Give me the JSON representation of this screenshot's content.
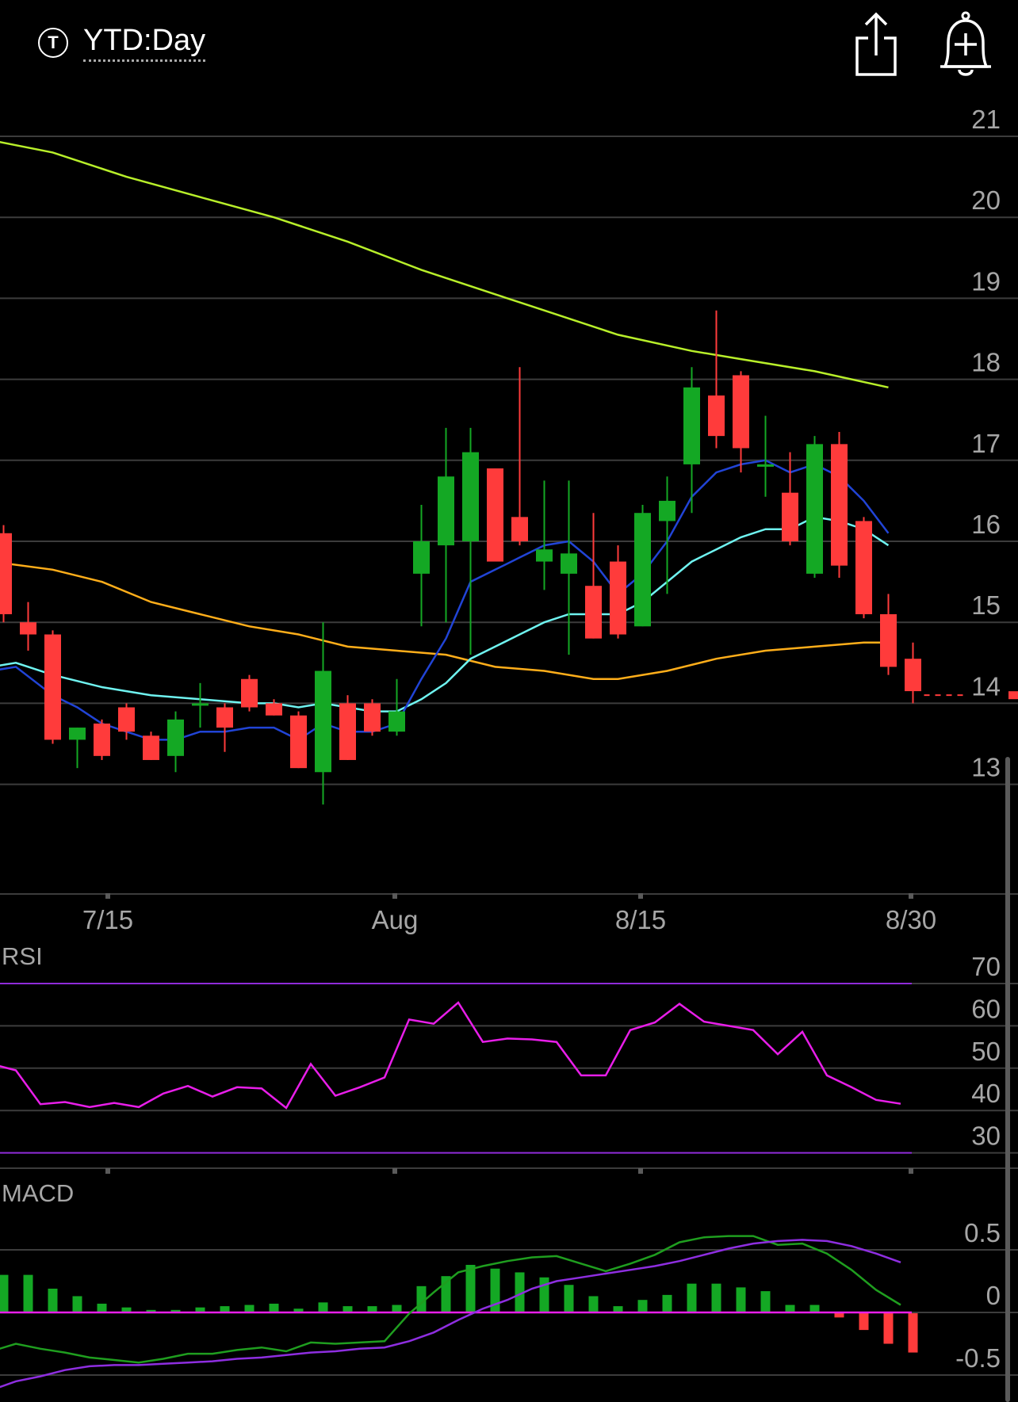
{
  "header": {
    "ticker_icon_letter": "T",
    "range_label": "YTD:Day",
    "share_icon": "share-icon",
    "alert_icon": "bell-plus-icon"
  },
  "chart_data": [
    {
      "type": "candlestick",
      "panel": "price",
      "ylim": [
        12,
        21.2
      ],
      "y_ticks": [
        21,
        20,
        19,
        18,
        17,
        16,
        15,
        14,
        13
      ],
      "x_ticks": [
        "7/15",
        "Aug",
        "8/15",
        "8/30"
      ],
      "colors": {
        "up": "#14a824",
        "down": "#ff3b3b",
        "ma_lime": "#b8ef2a",
        "ma_orange": "#ffae1a",
        "ma_cyan": "#6ff3f0",
        "ma_blue": "#2144d6"
      },
      "candles": [
        {
          "o": 16.1,
          "h": 16.2,
          "l": 15.0,
          "c": 15.1
        },
        {
          "o": 15.0,
          "h": 15.25,
          "l": 14.65,
          "c": 14.85
        },
        {
          "o": 14.85,
          "h": 14.9,
          "l": 13.5,
          "c": 13.55
        },
        {
          "o": 13.55,
          "h": 13.7,
          "l": 13.2,
          "c": 13.7
        },
        {
          "o": 13.75,
          "h": 13.8,
          "l": 13.3,
          "c": 13.35
        },
        {
          "o": 13.95,
          "h": 14.0,
          "l": 13.55,
          "c": 13.65
        },
        {
          "o": 13.6,
          "h": 13.65,
          "l": 13.3,
          "c": 13.3
        },
        {
          "o": 13.35,
          "h": 13.9,
          "l": 13.15,
          "c": 13.8
        },
        {
          "o": 14.0,
          "h": 14.25,
          "l": 13.7,
          "c": 14.0
        },
        {
          "o": 13.95,
          "h": 14.0,
          "l": 13.4,
          "c": 13.7
        },
        {
          "o": 14.3,
          "h": 14.35,
          "l": 13.9,
          "c": 13.95
        },
        {
          "o": 14.0,
          "h": 14.05,
          "l": 13.85,
          "c": 13.85
        },
        {
          "o": 13.85,
          "h": 13.9,
          "l": 13.2,
          "c": 13.2
        },
        {
          "o": 13.15,
          "h": 15.0,
          "l": 12.75,
          "c": 14.4
        },
        {
          "o": 14.0,
          "h": 14.1,
          "l": 13.3,
          "c": 13.3
        },
        {
          "o": 14.0,
          "h": 14.05,
          "l": 13.6,
          "c": 13.65
        },
        {
          "o": 13.65,
          "h": 14.3,
          "l": 13.6,
          "c": 13.9
        },
        {
          "o": 15.6,
          "h": 16.45,
          "l": 14.95,
          "c": 16.0
        },
        {
          "o": 15.95,
          "h": 17.4,
          "l": 15.0,
          "c": 16.8
        },
        {
          "o": 16.0,
          "h": 17.4,
          "l": 14.6,
          "c": 17.1
        },
        {
          "o": 16.9,
          "h": 16.9,
          "l": 15.8,
          "c": 15.75
        },
        {
          "o": 16.3,
          "h": 18.15,
          "l": 15.95,
          "c": 16.0
        },
        {
          "o": 15.75,
          "h": 16.75,
          "l": 15.4,
          "c": 15.9
        },
        {
          "o": 15.6,
          "h": 16.75,
          "l": 14.6,
          "c": 15.85
        },
        {
          "o": 15.45,
          "h": 16.35,
          "l": 14.8,
          "c": 14.8
        },
        {
          "o": 15.75,
          "h": 15.95,
          "l": 14.8,
          "c": 14.85
        },
        {
          "o": 14.95,
          "h": 16.45,
          "l": 14.95,
          "c": 16.35
        },
        {
          "o": 16.25,
          "h": 16.8,
          "l": 15.35,
          "c": 16.5
        },
        {
          "o": 16.95,
          "h": 18.15,
          "l": 16.35,
          "c": 17.9
        },
        {
          "o": 17.8,
          "h": 18.85,
          "l": 17.15,
          "c": 17.3
        },
        {
          "o": 18.05,
          "h": 18.1,
          "l": 16.85,
          "c": 17.15
        },
        {
          "o": 16.95,
          "h": 17.55,
          "l": 16.55,
          "c": 16.95
        },
        {
          "o": 16.6,
          "h": 17.1,
          "l": 15.95,
          "c": 16.0
        },
        {
          "o": 15.6,
          "h": 17.3,
          "l": 15.55,
          "c": 17.2
        },
        {
          "o": 17.2,
          "h": 17.35,
          "l": 15.55,
          "c": 15.7
        },
        {
          "o": 16.25,
          "h": 16.3,
          "l": 15.05,
          "c": 15.1
        },
        {
          "o": 15.1,
          "h": 15.35,
          "l": 14.35,
          "c": 14.45
        },
        {
          "o": 14.55,
          "h": 14.75,
          "l": 14.0,
          "c": 14.15
        }
      ],
      "last_price_line": 14.1,
      "moving_averages": [
        {
          "color": "lime",
          "points": [
            [
              -0.5,
              20.95
            ],
            [
              2,
              20.8
            ],
            [
              5,
              20.5
            ],
            [
              8,
              20.25
            ],
            [
              11,
              20.0
            ],
            [
              14,
              19.7
            ],
            [
              17,
              19.35
            ],
            [
              20,
              19.05
            ],
            [
              22,
              18.85
            ],
            [
              25,
              18.55
            ],
            [
              28,
              18.35
            ],
            [
              30,
              18.25
            ],
            [
              33,
              18.1
            ],
            [
              36,
              17.9
            ]
          ]
        },
        {
          "color": "orange",
          "points": [
            [
              -0.5,
              15.75
            ],
            [
              2,
              15.65
            ],
            [
              4,
              15.5
            ],
            [
              6,
              15.25
            ],
            [
              8,
              15.1
            ],
            [
              10,
              14.95
            ],
            [
              12,
              14.85
            ],
            [
              14,
              14.7
            ],
            [
              16,
              14.65
            ],
            [
              18,
              14.6
            ],
            [
              20,
              14.45
            ],
            [
              22,
              14.4
            ],
            [
              24,
              14.3
            ],
            [
              25,
              14.3
            ],
            [
              27,
              14.4
            ],
            [
              29,
              14.55
            ],
            [
              31,
              14.65
            ],
            [
              33,
              14.7
            ],
            [
              35,
              14.75
            ],
            [
              36,
              14.75
            ]
          ]
        },
        {
          "color": "cyan",
          "points": [
            [
              -0.5,
              14.45
            ],
            [
              0.5,
              14.5
            ],
            [
              2,
              14.35
            ],
            [
              4,
              14.2
            ],
            [
              6,
              14.1
            ],
            [
              8,
              14.05
            ],
            [
              10,
              14.0
            ],
            [
              11,
              14.0
            ],
            [
              12,
              13.95
            ],
            [
              13,
              14.0
            ],
            [
              14,
              13.95
            ],
            [
              15,
              13.9
            ],
            [
              16,
              13.9
            ],
            [
              17,
              14.05
            ],
            [
              18,
              14.25
            ],
            [
              19,
              14.55
            ],
            [
              20,
              14.7
            ],
            [
              21,
              14.85
            ],
            [
              22,
              15.0
            ],
            [
              23,
              15.1
            ],
            [
              24,
              15.1
            ],
            [
              25,
              15.1
            ],
            [
              26,
              15.25
            ],
            [
              27,
              15.5
            ],
            [
              28,
              15.75
            ],
            [
              29,
              15.9
            ],
            [
              30,
              16.05
            ],
            [
              31,
              16.15
            ],
            [
              32,
              16.15
            ],
            [
              33,
              16.3
            ],
            [
              34,
              16.25
            ],
            [
              35,
              16.15
            ],
            [
              36,
              15.95
            ]
          ]
        },
        {
          "color": "blue",
          "points": [
            [
              -0.5,
              14.4
            ],
            [
              0.5,
              14.45
            ],
            [
              2,
              14.1
            ],
            [
              3,
              13.95
            ],
            [
              4,
              13.75
            ],
            [
              5,
              13.65
            ],
            [
              6,
              13.55
            ],
            [
              7,
              13.55
            ],
            [
              8,
              13.65
            ],
            [
              9,
              13.65
            ],
            [
              10,
              13.7
            ],
            [
              11,
              13.7
            ],
            [
              12,
              13.55
            ],
            [
              13,
              13.75
            ],
            [
              14,
              13.65
            ],
            [
              15,
              13.65
            ],
            [
              16,
              13.75
            ],
            [
              17,
              14.3
            ],
            [
              18,
              14.8
            ],
            [
              19,
              15.5
            ],
            [
              20,
              15.65
            ],
            [
              21,
              15.8
            ],
            [
              22,
              15.95
            ],
            [
              23,
              16.0
            ],
            [
              24,
              15.75
            ],
            [
              25,
              15.35
            ],
            [
              26,
              15.6
            ],
            [
              27,
              16.0
            ],
            [
              28,
              16.55
            ],
            [
              29,
              16.85
            ],
            [
              30,
              16.95
            ],
            [
              31,
              17.0
            ],
            [
              32,
              16.85
            ],
            [
              33,
              16.95
            ],
            [
              34,
              16.8
            ],
            [
              35,
              16.5
            ],
            [
              36,
              16.1
            ]
          ]
        }
      ]
    },
    {
      "type": "line",
      "panel": "rsi",
      "title": "RSI",
      "ylim": [
        27,
        73
      ],
      "y_ticks": [
        70,
        60,
        50,
        40,
        30
      ],
      "bands": [
        70,
        30
      ],
      "color": "#e81ee9",
      "values": [
        [
          -0.5,
          51
        ],
        [
          0.5,
          49.5
        ],
        [
          1.5,
          41.5
        ],
        [
          2.5,
          42
        ],
        [
          3.5,
          40.8
        ],
        [
          4.5,
          41.8
        ],
        [
          5.5,
          40.8
        ],
        [
          6.5,
          44
        ],
        [
          7.5,
          45.8
        ],
        [
          8.5,
          43.3
        ],
        [
          9.5,
          45.5
        ],
        [
          10.5,
          45.2
        ],
        [
          11.5,
          40.6
        ],
        [
          12.5,
          51
        ],
        [
          13.5,
          43.5
        ],
        [
          14.5,
          45.5
        ],
        [
          15.5,
          47.8
        ],
        [
          16.5,
          61.5
        ],
        [
          17.5,
          60.5
        ],
        [
          18.5,
          65.5
        ],
        [
          19.5,
          56.2
        ],
        [
          20.5,
          57
        ],
        [
          21.5,
          56.8
        ],
        [
          22.5,
          56.2
        ],
        [
          23.5,
          48.3
        ],
        [
          24.5,
          48.3
        ],
        [
          25.5,
          59
        ],
        [
          26.5,
          60.8
        ],
        [
          27.5,
          65.2
        ],
        [
          28.5,
          61
        ],
        [
          29.5,
          60
        ],
        [
          30.5,
          59
        ],
        [
          31.5,
          53.3
        ],
        [
          32.5,
          58.6
        ],
        [
          33.5,
          48.3
        ],
        [
          34.5,
          45.5
        ],
        [
          35.5,
          42.5
        ],
        [
          36.5,
          41.6
        ]
      ]
    },
    {
      "type": "bar+line",
      "panel": "macd",
      "title": "MACD",
      "ylim": [
        -0.75,
        0.85
      ],
      "y_ticks": [
        0.5,
        0,
        -0.5
      ],
      "histogram": [
        0.3,
        0.3,
        0.19,
        0.13,
        0.07,
        0.04,
        0.02,
        0.02,
        0.04,
        0.05,
        0.06,
        0.07,
        0.03,
        0.08,
        0.05,
        0.05,
        0.06,
        0.21,
        0.29,
        0.38,
        0.35,
        0.32,
        0.28,
        0.22,
        0.13,
        0.05,
        0.1,
        0.14,
        0.23,
        0.23,
        0.2,
        0.17,
        0.06,
        0.06,
        -0.04,
        -0.14,
        -0.25,
        -0.32
      ],
      "macd_line": {
        "color": "#1f9e1f",
        "values": [
          [
            -0.5,
            -0.31
          ],
          [
            0.5,
            -0.25
          ],
          [
            1.5,
            -0.29
          ],
          [
            2.5,
            -0.32
          ],
          [
            3.5,
            -0.36
          ],
          [
            4.5,
            -0.38
          ],
          [
            5.5,
            -0.4
          ],
          [
            6.5,
            -0.37
          ],
          [
            7.5,
            -0.33
          ],
          [
            8.5,
            -0.33
          ],
          [
            9.5,
            -0.3
          ],
          [
            10.5,
            -0.28
          ],
          [
            11.5,
            -0.31
          ],
          [
            12.5,
            -0.24
          ],
          [
            13.5,
            -0.25
          ],
          [
            14.5,
            -0.24
          ],
          [
            15.5,
            -0.23
          ],
          [
            16.5,
            -0.01
          ],
          [
            17.5,
            0.16
          ],
          [
            18.5,
            0.32
          ],
          [
            19.5,
            0.37
          ],
          [
            20.5,
            0.41
          ],
          [
            21.5,
            0.44
          ],
          [
            22.5,
            0.45
          ],
          [
            23.5,
            0.39
          ],
          [
            24.5,
            0.33
          ],
          [
            25.5,
            0.39
          ],
          [
            26.5,
            0.46
          ],
          [
            27.5,
            0.56
          ],
          [
            28.5,
            0.6
          ],
          [
            29.5,
            0.61
          ],
          [
            30.5,
            0.61
          ],
          [
            31.5,
            0.54
          ],
          [
            32.5,
            0.55
          ],
          [
            33.5,
            0.47
          ],
          [
            34.5,
            0.34
          ],
          [
            35.5,
            0.18
          ],
          [
            36.5,
            0.06
          ]
        ]
      },
      "signal_line": {
        "color": "#8e2ee0",
        "values": [
          [
            -0.5,
            -0.62
          ],
          [
            0.5,
            -0.55
          ],
          [
            1.5,
            -0.51
          ],
          [
            2.5,
            -0.46
          ],
          [
            3.5,
            -0.43
          ],
          [
            4.5,
            -0.42
          ],
          [
            5.5,
            -0.42
          ],
          [
            6.5,
            -0.41
          ],
          [
            7.5,
            -0.4
          ],
          [
            8.5,
            -0.39
          ],
          [
            9.5,
            -0.37
          ],
          [
            10.5,
            -0.36
          ],
          [
            11.5,
            -0.34
          ],
          [
            12.5,
            -0.32
          ],
          [
            13.5,
            -0.31
          ],
          [
            14.5,
            -0.29
          ],
          [
            15.5,
            -0.28
          ],
          [
            16.5,
            -0.23
          ],
          [
            17.5,
            -0.16
          ],
          [
            18.5,
            -0.06
          ],
          [
            19.5,
            0.03
          ],
          [
            20.5,
            0.1
          ],
          [
            21.5,
            0.19
          ],
          [
            22.5,
            0.25
          ],
          [
            23.5,
            0.28
          ],
          [
            24.5,
            0.31
          ],
          [
            25.5,
            0.34
          ],
          [
            26.5,
            0.37
          ],
          [
            27.5,
            0.41
          ],
          [
            28.5,
            0.46
          ],
          [
            29.5,
            0.51
          ],
          [
            30.5,
            0.55
          ],
          [
            31.5,
            0.57
          ],
          [
            32.5,
            0.58
          ],
          [
            33.5,
            0.57
          ],
          [
            34.5,
            0.53
          ],
          [
            35.5,
            0.47
          ],
          [
            36.5,
            0.4
          ]
        ]
      }
    }
  ]
}
